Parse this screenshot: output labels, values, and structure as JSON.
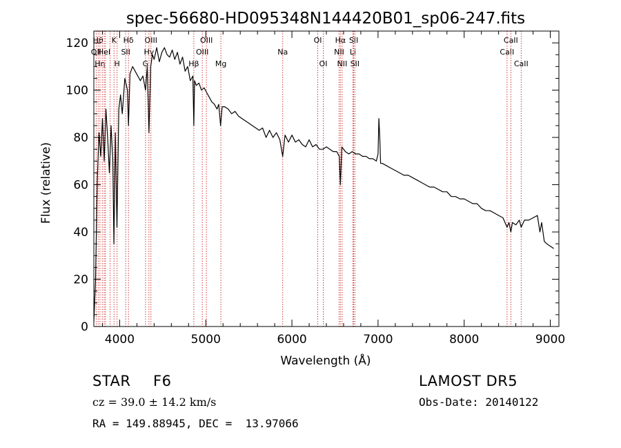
{
  "chart_data": {
    "type": "line",
    "title": "spec-56680-HD095348N144420B01_sp06-247.fits",
    "xlabel": "Wavelength (Å)",
    "ylabel": "Flux (relative)",
    "xlim": [
      3700,
      9100
    ],
    "ylim": [
      0,
      125
    ],
    "xticks": [
      4000,
      5000,
      6000,
      7000,
      8000,
      9000
    ],
    "yticks": [
      0,
      20,
      40,
      60,
      80,
      100,
      120
    ],
    "grid": false,
    "colors": {
      "spectrum": "#000000",
      "line_markers": "#cc2020",
      "axes": "#000000"
    },
    "series": [
      {
        "x": [
          3700,
          3720,
          3740,
          3760,
          3780,
          3800,
          3820,
          3840,
          3860,
          3880,
          3900,
          3920,
          3933,
          3950,
          3968,
          3990,
          4010,
          4030,
          4060,
          4090,
          4102,
          4120,
          4150,
          4180,
          4210,
          4240,
          4270,
          4300,
          4320,
          4340,
          4360,
          4380,
          4400,
          4430,
          4460,
          4490,
          4520,
          4550,
          4580,
          4610,
          4640,
          4670,
          4700,
          4730,
          4760,
          4790,
          4820,
          4850,
          4861,
          4870,
          4890,
          4920,
          4950,
          4980,
          5010,
          5040,
          5070,
          5100,
          5130,
          5150,
          5172,
          5190,
          5220,
          5260,
          5300,
          5340,
          5380,
          5420,
          5460,
          5500,
          5540,
          5580,
          5620,
          5660,
          5700,
          5740,
          5780,
          5820,
          5860,
          5893,
          5920,
          5960,
          6000,
          6040,
          6080,
          6120,
          6160,
          6200,
          6240,
          6280,
          6320,
          6360,
          6400,
          6440,
          6480,
          6520,
          6550,
          6563,
          6580,
          6620,
          6660,
          6700,
          6740,
          6780,
          6820,
          6860,
          6900,
          6940,
          6980,
          7000,
          7010,
          7020,
          7030,
          7050,
          7100,
          7150,
          7200,
          7250,
          7300,
          7350,
          7400,
          7450,
          7500,
          7550,
          7600,
          7650,
          7700,
          7750,
          7800,
          7850,
          7900,
          7950,
          8000,
          8050,
          8100,
          8150,
          8200,
          8250,
          8300,
          8350,
          8400,
          8450,
          8498,
          8520,
          8542,
          8560,
          8600,
          8640,
          8662,
          8700,
          8750,
          8800,
          8850,
          8880,
          8900,
          8930,
          8960,
          9000,
          9040
        ],
        "y": [
          2,
          20,
          62,
          82,
          72,
          88,
          70,
          92,
          80,
          65,
          85,
          70,
          35,
          82,
          42,
          92,
          98,
          90,
          105,
          100,
          85,
          107,
          110,
          108,
          106,
          104,
          106,
          100,
          110,
          82,
          110,
          115,
          113,
          118,
          112,
          116,
          118,
          115,
          114,
          117,
          113,
          116,
          111,
          114,
          108,
          110,
          104,
          106,
          85,
          104,
          102,
          103,
          100,
          101,
          99,
          97,
          95,
          94,
          92,
          94,
          85,
          93,
          93,
          92,
          90,
          91,
          89,
          88,
          87,
          86,
          85,
          84,
          83,
          84,
          80,
          83,
          80,
          82,
          79,
          72,
          81,
          78,
          81,
          78,
          79,
          77,
          76,
          79,
          76,
          77,
          75,
          75,
          76,
          75,
          74,
          74,
          72,
          60,
          76,
          74,
          73,
          74,
          73,
          73,
          72,
          72,
          71,
          71,
          70,
          73,
          88,
          80,
          69,
          69,
          68,
          67,
          66,
          65,
          64,
          64,
          63,
          62,
          61,
          60,
          59,
          59,
          58,
          57,
          57,
          55,
          55,
          54,
          54,
          53,
          52,
          52,
          50,
          49,
          49,
          48,
          47,
          46,
          42,
          44,
          40,
          44,
          43,
          45,
          42,
          45,
          45,
          46,
          47,
          40,
          44,
          36,
          35,
          34,
          33
        ]
      }
    ],
    "line_markers": [
      {
        "x": 3727,
        "label": "OII",
        "row": 2
      },
      {
        "x": 3750,
        "label": "Hθ",
        "row": 1
      },
      {
        "x": 3771,
        "label": "Hη",
        "row": 3
      },
      {
        "x": 3798,
        "label": "",
        "row": 0
      },
      {
        "x": 3820,
        "label": "HeI",
        "row": 2
      },
      {
        "x": 3835,
        "label": "",
        "row": 0
      },
      {
        "x": 3889,
        "label": "",
        "row": 0
      },
      {
        "x": 3934,
        "label": "K",
        "row": 1
      },
      {
        "x": 3970,
        "label": "H",
        "row": 3
      },
      {
        "x": 4070,
        "label": "SII",
        "row": 2
      },
      {
        "x": 4102,
        "label": "Hδ",
        "row": 1
      },
      {
        "x": 4300,
        "label": "G",
        "row": 3
      },
      {
        "x": 4340,
        "label": "Hγ",
        "row": 2
      },
      {
        "x": 4363,
        "label": "OIII",
        "row": 1
      },
      {
        "x": 4861,
        "label": "Hβ",
        "row": 3
      },
      {
        "x": 4959,
        "label": "OIII",
        "row": 2
      },
      {
        "x": 5007,
        "label": "OIII",
        "row": 1
      },
      {
        "x": 5175,
        "label": "Mg",
        "row": 3
      },
      {
        "x": 5893,
        "label": "Na",
        "row": 2
      },
      {
        "x": 6300,
        "label": "OI",
        "row": 1
      },
      {
        "x": 6364,
        "label": "OI",
        "row": 3
      },
      {
        "x": 6548,
        "label": "NII",
        "row": 2
      },
      {
        "x": 6563,
        "label": "Hα",
        "row": 1
      },
      {
        "x": 6583,
        "label": "NII",
        "row": 3
      },
      {
        "x": 6708,
        "label": "Li",
        "row": 2
      },
      {
        "x": 6717,
        "label": "SII",
        "row": 1
      },
      {
        "x": 6731,
        "label": "SII",
        "row": 3
      },
      {
        "x": 8498,
        "label": "CaII",
        "row": 2
      },
      {
        "x": 8542,
        "label": "CaII",
        "row": 1
      },
      {
        "x": 8662,
        "label": "CaII",
        "row": 3
      }
    ]
  },
  "info": {
    "object_class": "STAR",
    "subclass": "F6",
    "survey": "LAMOST DR5",
    "redshift": "cz = 39.0 ± 14.2 km/s",
    "obs_date": "Obs-Date: 20140122",
    "coords": "RA = 149.88945, DEC =  13.97066"
  }
}
